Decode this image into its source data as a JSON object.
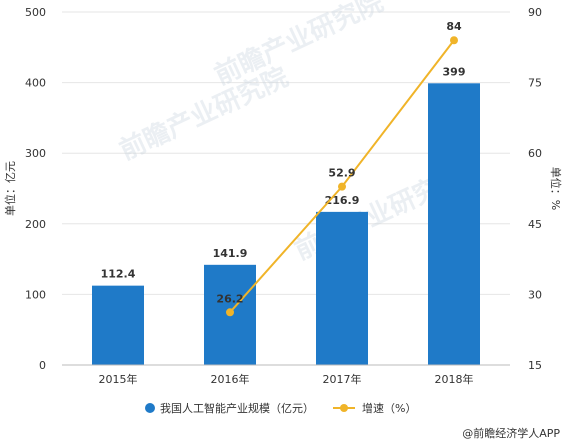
{
  "chart_data": {
    "type": "bar",
    "categories": [
      "2015年",
      "2016年",
      "2017年",
      "2018年"
    ],
    "series": [
      {
        "name": "我国人工智能产业规模（亿元）",
        "kind": "bar",
        "axis": "left",
        "values": [
          112.4,
          141.9,
          216.9,
          399
        ],
        "labels": [
          "112.4",
          "141.9",
          "216.9",
          "399"
        ]
      },
      {
        "name": "增速（%）",
        "kind": "line",
        "axis": "right",
        "values": [
          null,
          26.2,
          52.9,
          84
        ],
        "labels": [
          "",
          "26.2",
          "52.9",
          "84"
        ]
      }
    ],
    "y_left": {
      "label": "单位：亿元",
      "min": 0,
      "max": 500,
      "ticks": [
        "0",
        "100",
        "200",
        "300",
        "400",
        "500"
      ]
    },
    "y_right": {
      "label": "单位：%",
      "min": 15,
      "max": 90,
      "ticks": [
        "15",
        "30",
        "45",
        "60",
        "75",
        "90"
      ]
    },
    "grid": true,
    "legend_position": "bottom",
    "colors": {
      "bar": "#1f7ac8",
      "line": "#f0b429",
      "grid": "#e6e6e6"
    }
  },
  "watermark": "前瞻产业研究院",
  "source": "@前瞻经济学人APP"
}
